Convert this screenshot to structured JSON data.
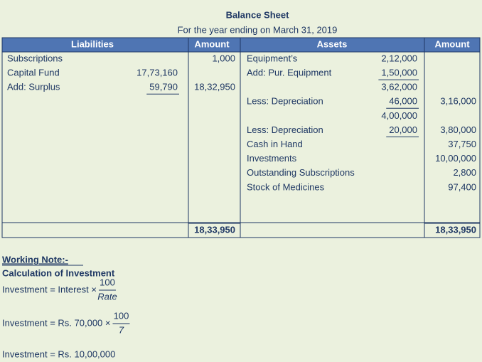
{
  "title": "Balance Sheet",
  "subtitle": "For the year ending on March 31, 2019",
  "table": {
    "headers": [
      "Liabilities",
      "Amount",
      "Assets",
      "Amount"
    ],
    "rows": [
      {
        "liability": "Subscriptions",
        "liability_amount": "1,000",
        "asset": "Equipment’s",
        "asset_sub": "2,12,000"
      },
      {
        "liability": "Capital Fund",
        "liability_sub": "17,73,160",
        "asset": "Add: Pur. Equipment",
        "asset_sub": "1,50,000",
        "underlined": [
          "asset_sub"
        ]
      },
      {
        "liability": "Add: Surplus",
        "liability_sub": "59,790",
        "liability_amount": "18,32,950",
        "asset_sub": "3,62,000",
        "underlined": [
          "liability_sub"
        ]
      },
      {
        "asset": "Less: Depreciation",
        "asset_sub": "46,000",
        "asset_amount": "3,16,000",
        "underlined": [
          "asset_sub"
        ]
      },
      {
        "asset_sub": "4,00,000"
      },
      {
        "asset": "Less: Depreciation",
        "asset_sub": "20,000",
        "asset_amount": "3,80,000",
        "underlined": [
          "asset_sub"
        ]
      },
      {
        "asset": "Cash in Hand",
        "asset_amount": "37,750"
      },
      {
        "asset": "Investments",
        "asset_amount": "10,00,000"
      },
      {
        "asset": "Outstanding Subscriptions",
        "asset_amount": "2,800"
      },
      {
        "asset": "Stock of Medicines",
        "asset_amount": "97,400"
      }
    ],
    "totals": [
      "18,33,950",
      "18,33,950"
    ]
  },
  "working_note": {
    "heading": "Working Note:-",
    "subheading": "Calculation of Investment",
    "lines": [
      {
        "text": "Investment = Interest ×",
        "numerator": "100",
        "denominator": "Rate"
      },
      {
        "text": "Investment = Rs. 70,000 ×",
        "numerator": "100",
        "denominator": "7"
      },
      {
        "text": "Investment = Rs. 10,00,000"
      }
    ]
  }
}
